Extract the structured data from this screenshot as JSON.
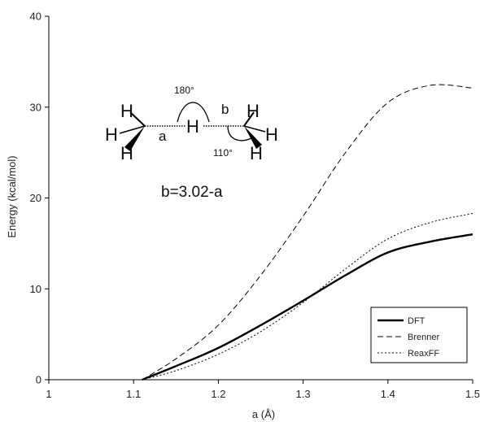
{
  "chart_data": {
    "type": "line",
    "title": "",
    "xlabel": "a (Å)",
    "ylabel": "Energy (kcal/mol)",
    "xlim": [
      1.0,
      1.5
    ],
    "ylim": [
      0,
      40
    ],
    "xticks": [
      1,
      1.1,
      1.2,
      1.3,
      1.4,
      1.5
    ],
    "yticks": [
      0,
      10,
      20,
      30,
      40
    ],
    "xtick_labels": [
      "1",
      "1.1",
      "1.2",
      "1.3",
      "1.4",
      "1.5"
    ],
    "ytick_labels": [
      "0",
      "10",
      "20",
      "30",
      "40"
    ],
    "grid": false,
    "legend_position": "bottom-right",
    "series": [
      {
        "name": "DFT",
        "style": "solid",
        "color": "#000000",
        "x": [
          1.11,
          1.15,
          1.2,
          1.25,
          1.3,
          1.35,
          1.4,
          1.45,
          1.5
        ],
        "y": [
          0.0,
          1.5,
          3.5,
          6.0,
          8.7,
          11.5,
          14.0,
          15.2,
          16.0
        ]
      },
      {
        "name": "Brenner",
        "style": "dashed",
        "color": "#000000",
        "x": [
          1.11,
          1.15,
          1.2,
          1.25,
          1.3,
          1.35,
          1.4,
          1.45,
          1.5
        ],
        "y": [
          0.0,
          2.3,
          6.0,
          11.5,
          18.0,
          25.0,
          30.5,
          32.4,
          32.1
        ]
      },
      {
        "name": "ReaxFF",
        "style": "dotted",
        "color": "#000000",
        "x": [
          1.11,
          1.15,
          1.2,
          1.25,
          1.3,
          1.35,
          1.4,
          1.45,
          1.5
        ],
        "y": [
          0.0,
          1.0,
          2.8,
          5.3,
          8.5,
          12.2,
          15.5,
          17.3,
          18.3
        ]
      }
    ]
  },
  "inset": {
    "h_label": "H",
    "label_a": "a",
    "label_b": "b",
    "angle_180": "180°",
    "angle_110": "110°",
    "equation": "b=3.02-a"
  }
}
